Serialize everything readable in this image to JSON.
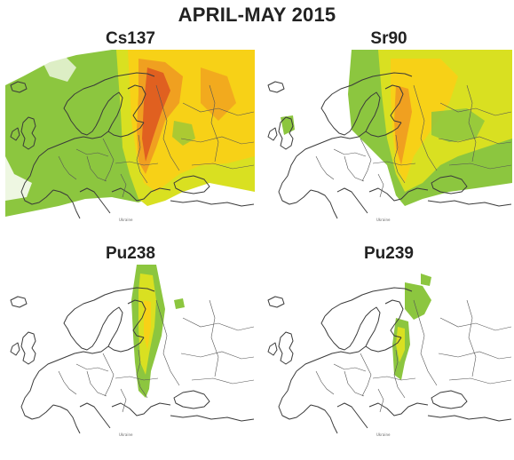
{
  "title": "APRIL-MAY 2015",
  "panels": [
    {
      "label": "Cs137",
      "isotope_color_scale": [
        "#8cc63f",
        "#d9e021",
        "#f7d117",
        "#f0a020",
        "#e06020"
      ]
    },
    {
      "label": "Sr90",
      "isotope_color_scale": [
        "#8cc63f",
        "#d9e021",
        "#f7d117",
        "#f0a020",
        "#e06020"
      ]
    },
    {
      "label": "Pu238",
      "isotope_color_scale": [
        "#8cc63f",
        "#d9e021",
        "#f7d117"
      ]
    },
    {
      "label": "Pu239",
      "isotope_color_scale": [
        "#8cc63f",
        "#d9e021"
      ]
    }
  ]
}
